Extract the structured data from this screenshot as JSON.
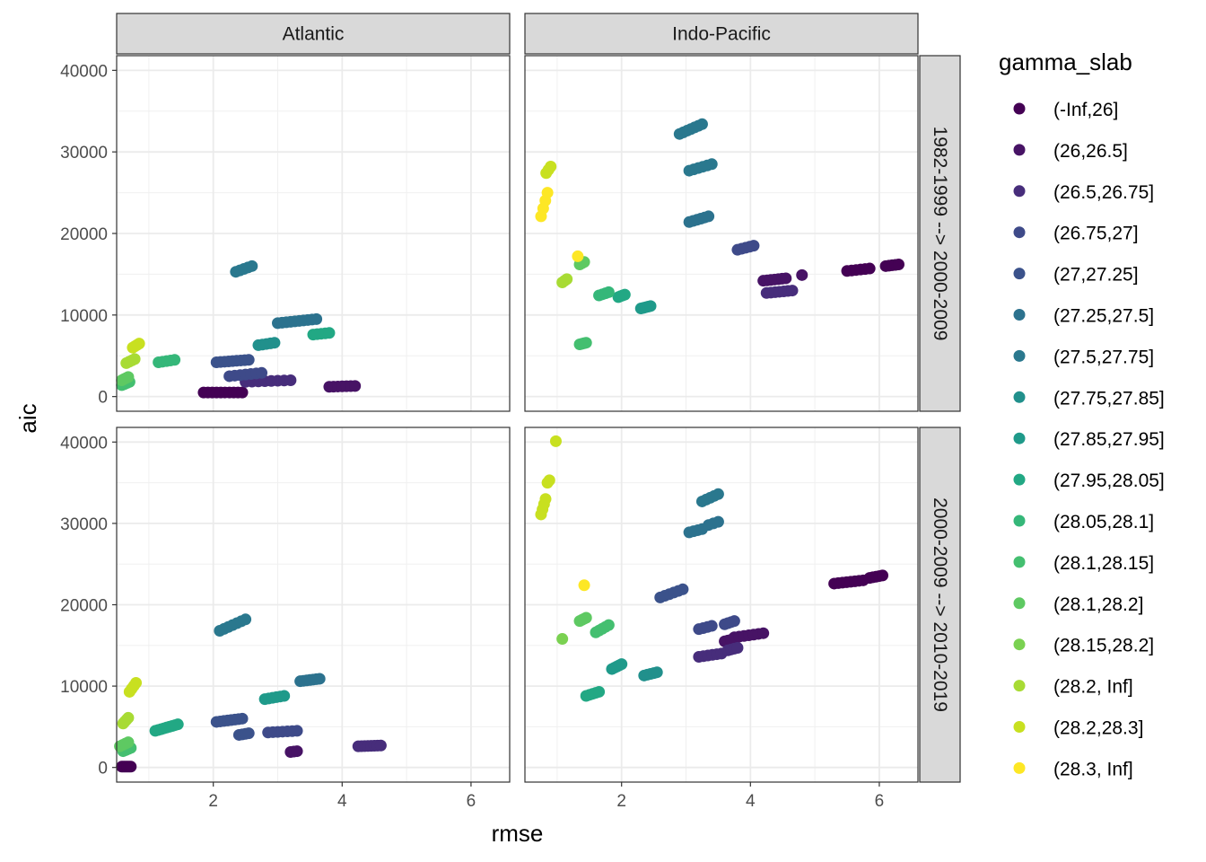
{
  "chart_data": {
    "type": "scatter",
    "xlabel": "rmse",
    "ylabel": "aic",
    "xlim": [
      0.5,
      6.6
    ],
    "ylim": [
      -1800,
      41800
    ],
    "x_ticks": [
      2,
      4,
      6
    ],
    "y_ticks": [
      0,
      10000,
      20000,
      30000,
      40000
    ],
    "x_tick_labels": [
      "2",
      "4",
      "6"
    ],
    "y_tick_labels": [
      "0",
      "10000",
      "20000",
      "30000",
      "40000"
    ],
    "grid": true,
    "legend_position": "right",
    "facet_columns": [
      "Atlantic",
      "Indo-Pacific"
    ],
    "facet_rows": [
      "1982-1999 --> 2000-2009",
      "2000-2009 --> 2010-2019"
    ],
    "legend": {
      "title": "gamma_slab",
      "entries": [
        {
          "label": "(-Inf,26]",
          "color": "#440154"
        },
        {
          "label": "(26,26.5]",
          "color": "#471365"
        },
        {
          "label": "(26.5,26.75]",
          "color": "#472D7B"
        },
        {
          "label": "(26.75,27]",
          "color": "#3E4A89"
        },
        {
          "label": "(27,27.25]",
          "color": "#3B528B"
        },
        {
          "label": "(27.25,27.5]",
          "color": "#2C728E"
        },
        {
          "label": "(27.5,27.75]",
          "color": "#2A788E"
        },
        {
          "label": "(27.75,27.85]",
          "color": "#21908C"
        },
        {
          "label": "(27.85,27.95]",
          "color": "#1F9A8A"
        },
        {
          "label": "(27.95,28.05]",
          "color": "#22A884"
        },
        {
          "label": "(28.05,28.1]",
          "color": "#35B779"
        },
        {
          "label": "(28.1,28.15]",
          "color": "#44BF70"
        },
        {
          "label": "(28.1,28.2]",
          "color": "#5EC962"
        },
        {
          "label": "(28.15,28.2]",
          "color": "#7AD151"
        },
        {
          "label": "(28.2, Inf]",
          "color": "#A8DB34"
        },
        {
          "label": "(28.2,28.3]",
          "color": "#C8E020"
        },
        {
          "label": "(28.3, Inf]",
          "color": "#FDE725"
        }
      ]
    },
    "panels": [
      {
        "row": 0,
        "col": 0,
        "clusters": [
          {
            "g": 0,
            "x1": 1.85,
            "x2": 2.45,
            "y1": 500,
            "y2": 500,
            "n": 10
          },
          {
            "g": 1,
            "x1": 3.8,
            "x2": 4.2,
            "y1": 1200,
            "y2": 1300,
            "n": 7
          },
          {
            "g": 2,
            "x1": 2.5,
            "x2": 3.2,
            "y1": 1800,
            "y2": 2000,
            "n": 8
          },
          {
            "g": 3,
            "x1": 2.25,
            "x2": 2.75,
            "y1": 2500,
            "y2": 2900,
            "n": 7
          },
          {
            "g": 4,
            "x1": 2.05,
            "x2": 2.55,
            "y1": 4200,
            "y2": 4500,
            "n": 9
          },
          {
            "g": 5,
            "x1": 3.0,
            "x2": 3.6,
            "y1": 9000,
            "y2": 9500,
            "n": 10
          },
          {
            "g": 6,
            "x1": 2.35,
            "x2": 2.6,
            "y1": 15300,
            "y2": 16000,
            "n": 5
          },
          {
            "g": 7,
            "x1": 2.7,
            "x2": 2.95,
            "y1": 6300,
            "y2": 6600,
            "n": 5
          },
          {
            "g": 9,
            "x1": 3.55,
            "x2": 3.8,
            "y1": 7600,
            "y2": 7800,
            "n": 5
          },
          {
            "g": 10,
            "x1": 1.15,
            "x2": 1.4,
            "y1": 4200,
            "y2": 4500,
            "n": 5
          },
          {
            "g": 11,
            "x1": 0.58,
            "x2": 0.7,
            "y1": 1400,
            "y2": 1800,
            "n": 4
          },
          {
            "g": 12,
            "x1": 0.58,
            "x2": 0.68,
            "y1": 2000,
            "y2": 2400,
            "n": 4
          },
          {
            "g": 14,
            "x1": 0.65,
            "x2": 0.78,
            "y1": 4100,
            "y2": 4600,
            "n": 4
          },
          {
            "g": 15,
            "x1": 0.75,
            "x2": 0.85,
            "y1": 6000,
            "y2": 6500,
            "n": 4
          }
        ]
      },
      {
        "row": 0,
        "col": 1,
        "clusters": [
          {
            "g": 0,
            "x1": 5.5,
            "x2": 5.85,
            "y1": 15400,
            "y2": 15700,
            "n": 6
          },
          {
            "g": 0,
            "x1": 6.1,
            "x2": 6.3,
            "y1": 16000,
            "y2": 16200,
            "n": 5
          },
          {
            "g": 1,
            "x1": 4.2,
            "x2": 4.55,
            "y1": 14200,
            "y2": 14500,
            "n": 7
          },
          {
            "g": 1,
            "x1": 4.8,
            "x2": 4.8,
            "y1": 14900,
            "y2": 14900,
            "n": 1
          },
          {
            "g": 2,
            "x1": 4.25,
            "x2": 4.65,
            "y1": 12700,
            "y2": 13000,
            "n": 7
          },
          {
            "g": 3,
            "x1": 3.8,
            "x2": 4.05,
            "y1": 18000,
            "y2": 18500,
            "n": 5
          },
          {
            "g": 5,
            "x1": 3.05,
            "x2": 3.35,
            "y1": 21400,
            "y2": 22100,
            "n": 6
          },
          {
            "g": 6,
            "x1": 3.05,
            "x2": 3.4,
            "y1": 27700,
            "y2": 28500,
            "n": 6
          },
          {
            "g": 6,
            "x1": 2.9,
            "x2": 3.25,
            "y1": 32200,
            "y2": 33400,
            "n": 7
          },
          {
            "g": 8,
            "x1": 2.3,
            "x2": 2.45,
            "y1": 10800,
            "y2": 11100,
            "n": 5
          },
          {
            "g": 9,
            "x1": 1.95,
            "x2": 2.05,
            "y1": 12200,
            "y2": 12500,
            "n": 4
          },
          {
            "g": 10,
            "x1": 1.65,
            "x2": 1.8,
            "y1": 12400,
            "y2": 12800,
            "n": 4
          },
          {
            "g": 11,
            "x1": 1.35,
            "x2": 1.45,
            "y1": 6400,
            "y2": 6600,
            "n": 4
          },
          {
            "g": 12,
            "x1": 1.35,
            "x2": 1.42,
            "y1": 16200,
            "y2": 16500,
            "n": 3
          },
          {
            "g": 14,
            "x1": 1.08,
            "x2": 1.15,
            "y1": 14000,
            "y2": 14400,
            "n": 3
          },
          {
            "g": 15,
            "x1": 0.83,
            "x2": 0.9,
            "y1": 27400,
            "y2": 28200,
            "n": 3
          },
          {
            "g": 16,
            "x1": 0.75,
            "x2": 0.85,
            "y1": 22100,
            "y2": 25000,
            "n": 4
          },
          {
            "g": 16,
            "x1": 1.32,
            "x2": 1.32,
            "y1": 17200,
            "y2": 17200,
            "n": 1
          }
        ]
      },
      {
        "row": 1,
        "col": 0,
        "clusters": [
          {
            "g": 0,
            "x1": 0.58,
            "x2": 0.72,
            "y1": 100,
            "y2": 100,
            "n": 6
          },
          {
            "g": 1,
            "x1": 3.2,
            "x2": 3.3,
            "y1": 1900,
            "y2": 2000,
            "n": 3
          },
          {
            "g": 2,
            "x1": 4.25,
            "x2": 4.6,
            "y1": 2600,
            "y2": 2700,
            "n": 8
          },
          {
            "g": 3,
            "x1": 2.85,
            "x2": 3.3,
            "y1": 4300,
            "y2": 4500,
            "n": 7
          },
          {
            "g": 4,
            "x1": 2.4,
            "x2": 2.55,
            "y1": 4000,
            "y2": 4200,
            "n": 4
          },
          {
            "g": 4,
            "x1": 2.05,
            "x2": 2.45,
            "y1": 5600,
            "y2": 6000,
            "n": 8
          },
          {
            "g": 5,
            "x1": 3.35,
            "x2": 3.65,
            "y1": 10600,
            "y2": 10900,
            "n": 7
          },
          {
            "g": 6,
            "x1": 2.1,
            "x2": 2.5,
            "y1": 16800,
            "y2": 18200,
            "n": 7
          },
          {
            "g": 8,
            "x1": 2.8,
            "x2": 3.1,
            "y1": 8400,
            "y2": 8800,
            "n": 6
          },
          {
            "g": 9,
            "x1": 1.1,
            "x2": 1.45,
            "y1": 4500,
            "y2": 5300,
            "n": 9
          },
          {
            "g": 11,
            "x1": 0.6,
            "x2": 0.72,
            "y1": 2000,
            "y2": 2400,
            "n": 4
          },
          {
            "g": 12,
            "x1": 0.55,
            "x2": 0.68,
            "y1": 2600,
            "y2": 3100,
            "n": 4
          },
          {
            "g": 14,
            "x1": 0.6,
            "x2": 0.68,
            "y1": 5400,
            "y2": 6100,
            "n": 4
          },
          {
            "g": 15,
            "x1": 0.7,
            "x2": 0.8,
            "y1": 9300,
            "y2": 10400,
            "n": 4
          }
        ]
      },
      {
        "row": 1,
        "col": 1,
        "clusters": [
          {
            "g": 0,
            "x1": 5.3,
            "x2": 5.75,
            "y1": 22600,
            "y2": 23000,
            "n": 8
          },
          {
            "g": 0,
            "x1": 5.85,
            "x2": 6.05,
            "y1": 23300,
            "y2": 23600,
            "n": 5
          },
          {
            "g": 1,
            "x1": 3.6,
            "x2": 3.7,
            "y1": 15500,
            "y2": 15700,
            "n": 3
          },
          {
            "g": 1,
            "x1": 3.75,
            "x2": 4.2,
            "y1": 16000,
            "y2": 16500,
            "n": 7
          },
          {
            "g": 2,
            "x1": 3.2,
            "x2": 3.55,
            "y1": 13600,
            "y2": 14000,
            "n": 6
          },
          {
            "g": 2,
            "x1": 3.65,
            "x2": 3.8,
            "y1": 14400,
            "y2": 14700,
            "n": 4
          },
          {
            "g": 3,
            "x1": 3.2,
            "x2": 3.4,
            "y1": 17000,
            "y2": 17400,
            "n": 4
          },
          {
            "g": 3,
            "x1": 3.6,
            "x2": 3.75,
            "y1": 17600,
            "y2": 18000,
            "n": 4
          },
          {
            "g": 4,
            "x1": 2.6,
            "x2": 2.95,
            "y1": 20900,
            "y2": 21900,
            "n": 6
          },
          {
            "g": 5,
            "x1": 3.05,
            "x2": 3.25,
            "y1": 28900,
            "y2": 29300,
            "n": 4
          },
          {
            "g": 5,
            "x1": 3.35,
            "x2": 3.5,
            "y1": 29800,
            "y2": 30200,
            "n": 3
          },
          {
            "g": 6,
            "x1": 3.25,
            "x2": 3.5,
            "y1": 32700,
            "y2": 33600,
            "n": 5
          },
          {
            "g": 7,
            "x1": 2.35,
            "x2": 2.55,
            "y1": 11300,
            "y2": 11700,
            "n": 5
          },
          {
            "g": 8,
            "x1": 1.85,
            "x2": 2.0,
            "y1": 12100,
            "y2": 12700,
            "n": 5
          },
          {
            "g": 9,
            "x1": 1.45,
            "x2": 1.65,
            "y1": 8800,
            "y2": 9300,
            "n": 5
          },
          {
            "g": 11,
            "x1": 1.6,
            "x2": 1.8,
            "y1": 16600,
            "y2": 17500,
            "n": 5
          },
          {
            "g": 12,
            "x1": 1.35,
            "x2": 1.45,
            "y1": 18000,
            "y2": 18400,
            "n": 4
          },
          {
            "g": 13,
            "x1": 1.08,
            "x2": 1.08,
            "y1": 15800,
            "y2": 15800,
            "n": 1
          },
          {
            "g": 15,
            "x1": 0.75,
            "x2": 0.82,
            "y1": 31100,
            "y2": 33000,
            "n": 4
          },
          {
            "g": 15,
            "x1": 0.85,
            "x2": 0.88,
            "y1": 35000,
            "y2": 35300,
            "n": 2
          },
          {
            "g": 15,
            "x1": 0.98,
            "x2": 0.98,
            "y1": 40100,
            "y2": 40100,
            "n": 1
          },
          {
            "g": 16,
            "x1": 1.42,
            "x2": 1.42,
            "y1": 22400,
            "y2": 22400,
            "n": 1
          }
        ]
      }
    ]
  }
}
